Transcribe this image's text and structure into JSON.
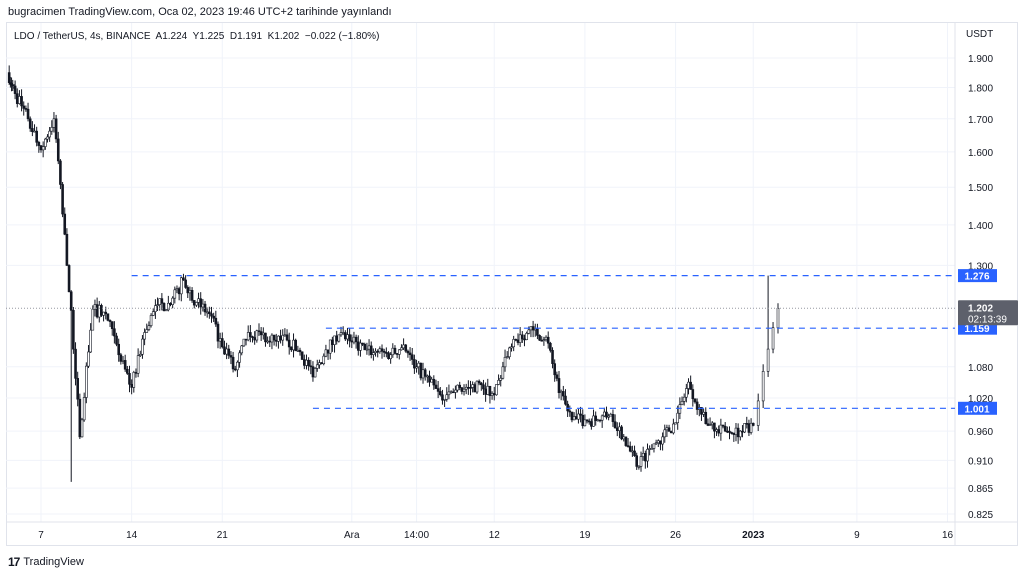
{
  "published": "bugracimen TradingView.com, Oca 02, 2023 19:46 UTC+2 tarihinde yayınlandı",
  "legend": "LDO / TetherUS, 4s, BINANCE  A1.224  Y1.225  D1.191  K1.202  −0.022 (−1.80%)",
  "footer": {
    "logo_text": "TradingView",
    "logo_mark": "17"
  },
  "colors": {
    "hline": "#2962ff",
    "up": "#ffffff",
    "down": "#131722",
    "price_label": "#5d606b"
  },
  "chart_data": {
    "type": "candlestick",
    "symbol": "LDO / TetherUS",
    "interval": "4s",
    "exchange": "BINANCE",
    "ohlc_last": {
      "open": 1.224,
      "high": 1.225,
      "low": 1.191,
      "close": 1.202,
      "change": -0.022,
      "change_pct": -1.8
    },
    "y_unit": "USDT",
    "y_scale": "log",
    "ylim": [
      0.8,
      1.95
    ],
    "y_ticks": [
      "1.900",
      "1.800",
      "1.700",
      "1.600",
      "1.500",
      "1.400",
      "1.300",
      "1.080",
      "1.020",
      "0.960",
      "0.910",
      "0.865",
      "0.825"
    ],
    "x_ticks": [
      {
        "label": "7",
        "date": "2022-11-07"
      },
      {
        "label": "14",
        "date": "2022-11-14"
      },
      {
        "label": "21",
        "date": "2022-11-21"
      },
      {
        "label": "Ara",
        "date": "2022-12-01"
      },
      {
        "label": "14:00",
        "date": "2022-12-06"
      },
      {
        "label": "12",
        "date": "2022-12-12"
      },
      {
        "label": "19",
        "date": "2022-12-19"
      },
      {
        "label": "26",
        "date": "2022-12-26"
      },
      {
        "label": "2023",
        "date": "2023-01-01"
      },
      {
        "label": "9",
        "date": "2023-01-09"
      },
      {
        "label": "16",
        "date": "2023-01-16"
      }
    ],
    "daily_closes": [
      [
        "2022-11-05",
        1.78
      ],
      [
        "2022-11-06",
        1.7
      ],
      [
        "2022-11-07",
        1.606
      ],
      [
        "2022-11-08",
        1.7
      ],
      [
        "2022-11-09",
        1.3
      ],
      [
        "2022-11-10",
        0.95
      ],
      [
        "2022-11-11",
        1.2
      ],
      [
        "2022-11-12",
        1.19
      ],
      [
        "2022-11-13",
        1.104
      ],
      [
        "2022-11-14",
        1.04
      ],
      [
        "2022-11-15",
        1.15
      ],
      [
        "2022-11-16",
        1.21
      ],
      [
        "2022-11-17",
        1.21
      ],
      [
        "2022-11-18",
        1.266
      ],
      [
        "2022-11-19",
        1.215
      ],
      [
        "2022-11-20",
        1.19
      ],
      [
        "2022-11-21",
        1.12
      ],
      [
        "2022-11-22",
        1.074
      ],
      [
        "2022-11-23",
        1.15
      ],
      [
        "2022-11-24",
        1.145
      ],
      [
        "2022-11-25",
        1.134
      ],
      [
        "2022-11-26",
        1.134
      ],
      [
        "2022-11-27",
        1.11
      ],
      [
        "2022-11-28",
        1.06
      ],
      [
        "2022-11-29",
        1.114
      ],
      [
        "2022-11-30",
        1.145
      ],
      [
        "2022-12-01",
        1.13
      ],
      [
        "2022-12-02",
        1.114
      ],
      [
        "2022-12-03",
        1.11
      ],
      [
        "2022-12-04",
        1.104
      ],
      [
        "2022-12-05",
        1.124
      ],
      [
        "2022-12-06",
        1.08
      ],
      [
        "2022-12-07",
        1.05
      ],
      [
        "2022-12-08",
        1.016
      ],
      [
        "2022-12-09",
        1.035
      ],
      [
        "2022-12-10",
        1.04
      ],
      [
        "2022-12-11",
        1.045
      ],
      [
        "2022-12-12",
        1.026
      ],
      [
        "2022-12-13",
        1.1
      ],
      [
        "2022-12-14",
        1.145
      ],
      [
        "2022-12-15",
        1.155
      ],
      [
        "2022-12-16",
        1.14
      ],
      [
        "2022-12-17",
        1.03
      ],
      [
        "2022-12-18",
        0.98
      ],
      [
        "2022-12-19",
        0.98
      ],
      [
        "2022-12-20",
        0.98
      ],
      [
        "2022-12-21",
        0.99
      ],
      [
        "2022-12-22",
        0.95
      ],
      [
        "2022-12-23",
        0.9
      ],
      [
        "2022-12-24",
        0.93
      ],
      [
        "2022-12-25",
        0.95
      ],
      [
        "2022-12-26",
        0.975
      ],
      [
        "2022-12-27",
        1.05
      ],
      [
        "2022-12-28",
        0.99
      ],
      [
        "2022-12-29",
        0.96
      ],
      [
        "2022-12-30",
        0.96
      ],
      [
        "2022-12-31",
        0.96
      ],
      [
        "2023-01-01",
        0.97
      ],
      [
        "2023-01-02",
        1.202
      ]
    ],
    "horizontal_lines": [
      {
        "price": 1.276,
        "label": "1.276",
        "from_date": "2022-11-14"
      },
      {
        "price": 1.159,
        "label": "1.159",
        "from_date": "2022-11-29"
      },
      {
        "price": 1.001,
        "label": "1.001",
        "from_date": "2022-11-28"
      }
    ],
    "current_price": {
      "price": 1.202,
      "label": "1.202",
      "countdown": "02:13:39"
    }
  }
}
